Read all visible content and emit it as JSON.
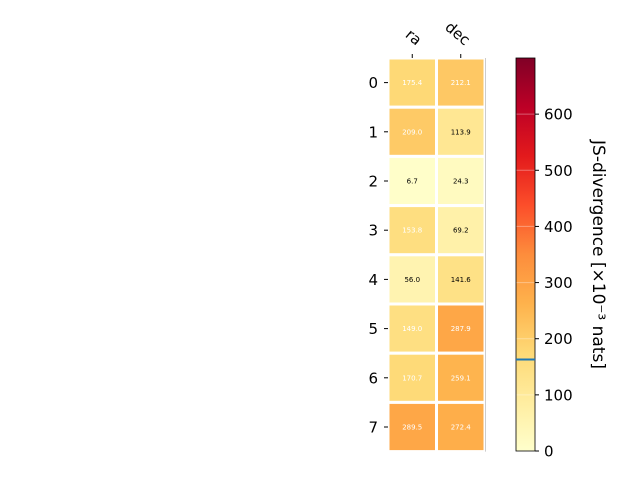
{
  "chart_data": {
    "type": "heatmap",
    "x_categories": [
      "ra",
      "dec"
    ],
    "y_categories": [
      "0",
      "1",
      "2",
      "3",
      "4",
      "5",
      "6",
      "7"
    ],
    "values": [
      [
        175.4,
        212.1
      ],
      [
        209.0,
        113.9
      ],
      [
        6.7,
        24.3
      ],
      [
        153.8,
        69.2
      ],
      [
        56.0,
        141.6
      ],
      [
        149.0,
        287.9
      ],
      [
        170.7,
        259.1
      ],
      [
        289.5,
        272.4
      ]
    ],
    "value_labels": [
      [
        "175.4",
        "212.1"
      ],
      [
        "209.0",
        "113.9"
      ],
      [
        "6.7",
        "24.3"
      ],
      [
        "153.8",
        "69.2"
      ],
      [
        "56.0",
        "141.6"
      ],
      [
        "149.0",
        "287.9"
      ],
      [
        "170.7",
        "259.1"
      ],
      [
        "289.5",
        "272.4"
      ]
    ],
    "colorbar": {
      "label": "JS-divergence [×10⁻³ nats]",
      "range": [
        0,
        700
      ],
      "ticks": [
        "0",
        "100",
        "200",
        "300",
        "400",
        "500",
        "600"
      ],
      "marker_value": 163,
      "marker_color": "#1f77b4",
      "colormap": "YlOrRd"
    },
    "title": "",
    "xlabel": "",
    "ylabel": ""
  }
}
